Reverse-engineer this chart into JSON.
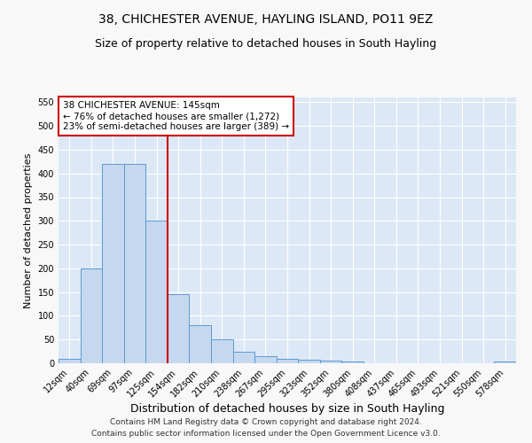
{
  "title1": "38, CHICHESTER AVENUE, HAYLING ISLAND, PO11 9EZ",
  "title2": "Size of property relative to detached houses in South Hayling",
  "xlabel": "Distribution of detached houses by size in South Hayling",
  "ylabel": "Number of detached properties",
  "bin_labels": [
    "12sqm",
    "40sqm",
    "69sqm",
    "97sqm",
    "125sqm",
    "154sqm",
    "182sqm",
    "210sqm",
    "238sqm",
    "267sqm",
    "295sqm",
    "323sqm",
    "352sqm",
    "380sqm",
    "408sqm",
    "437sqm",
    "465sqm",
    "493sqm",
    "521sqm",
    "550sqm",
    "578sqm"
  ],
  "bar_heights": [
    10,
    200,
    420,
    420,
    300,
    145,
    80,
    50,
    25,
    15,
    10,
    7,
    5,
    3,
    0,
    0,
    0,
    0,
    0,
    0,
    3
  ],
  "bar_color": "#c5d8ef",
  "bar_edge_color": "#5b9bd5",
  "vline_x": 4.5,
  "vline_color": "#cc0000",
  "annotation_line1": "38 CHICHESTER AVENUE: 145sqm",
  "annotation_line2": "← 76% of detached houses are smaller (1,272)",
  "annotation_line3": "23% of semi-detached houses are larger (389) →",
  "annotation_box_color": "#ffffff",
  "annotation_box_edge": "#cc0000",
  "ylim": [
    0,
    560
  ],
  "yticks": [
    0,
    50,
    100,
    150,
    200,
    250,
    300,
    350,
    400,
    450,
    500,
    550
  ],
  "fig_bg": "#f8f8f8",
  "plot_bg": "#dce8f5",
  "grid_color": "#ffffff",
  "footer1": "Contains HM Land Registry data © Crown copyright and database right 2024.",
  "footer2": "Contains public sector information licensed under the Open Government Licence v3.0.",
  "title1_fontsize": 10,
  "title2_fontsize": 9,
  "xlabel_fontsize": 9,
  "ylabel_fontsize": 8,
  "tick_fontsize": 7,
  "annotation_fontsize": 7.5,
  "footer_fontsize": 6.5
}
